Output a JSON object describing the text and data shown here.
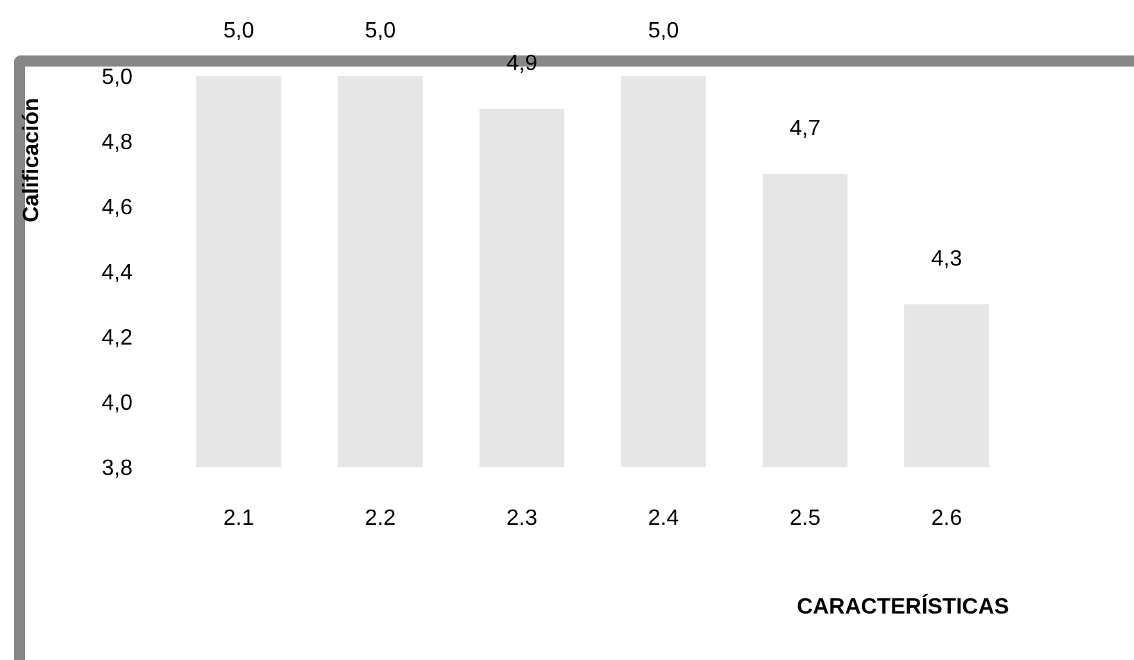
{
  "chart_data": {
    "type": "bar",
    "xlabel": "CARACTERÍSTICAS",
    "ylabel": "Calificación",
    "categories": [
      "2.1",
      "2.2",
      "2.3",
      "2.4",
      "2.5",
      "2.6"
    ],
    "values": [
      5.0,
      5.0,
      4.9,
      5.0,
      4.7,
      4.3
    ],
    "value_labels": [
      "5,0",
      "5,0",
      "4,9",
      "5,0",
      "4,7",
      "4,3"
    ],
    "color": "#e6e6e6",
    "ylim": [
      3.8,
      5.0
    ],
    "yticks": [
      {
        "value": 3.8,
        "label": "3,8"
      },
      {
        "value": 4.0,
        "label": "4,0"
      },
      {
        "value": 4.2,
        "label": "4,2"
      },
      {
        "value": 4.4,
        "label": "4,4"
      },
      {
        "value": 4.6,
        "label": "4,6"
      },
      {
        "value": 4.8,
        "label": "4,8"
      },
      {
        "value": 5.0,
        "label": "5,0"
      }
    ]
  }
}
